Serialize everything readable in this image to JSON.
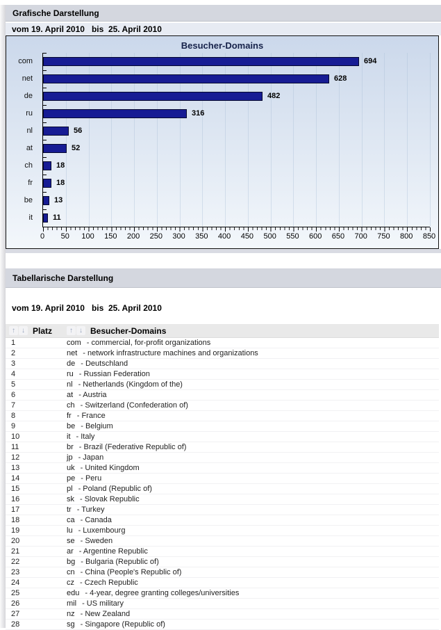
{
  "sections": {
    "graphic_title": "Grafische Darstellung",
    "table_title": "Tabellarische Darstellung"
  },
  "date_range": "vom 19. April 2010   bis  25. April 2010",
  "chart_data": {
    "type": "bar",
    "orientation": "horizontal",
    "title": "Besucher-Domains",
    "categories": [
      "com",
      "net",
      "de",
      "ru",
      "nl",
      "at",
      "ch",
      "fr",
      "be",
      "it"
    ],
    "values": [
      694,
      628,
      482,
      316,
      56,
      52,
      18,
      18,
      13,
      11
    ],
    "xlim": [
      0,
      850
    ],
    "x_tick_step": 50,
    "x_minor_step": 10,
    "x_tick_labels": [
      "0",
      "50",
      "100",
      "150",
      "200",
      "250",
      "300",
      "350",
      "400",
      "450",
      "500",
      "550",
      "600",
      "650",
      "700",
      "750",
      "800",
      "850"
    ],
    "grid": true,
    "legend": false,
    "value_labels": true,
    "colors": {
      "bar": "#171c94",
      "bar_border": "#05082e",
      "title": "#16224a",
      "axis": "#000000",
      "gridline": "#a9bcd6",
      "plot_bg_top": "#cbd8eb",
      "plot_bg_bottom": "#f3f7fb"
    }
  },
  "table": {
    "columns": [
      {
        "label": "Platz"
      },
      {
        "label": "Besucher-Domains"
      }
    ],
    "sort_icons": {
      "asc": "↑",
      "desc": "↓"
    },
    "separator": "-",
    "rows": [
      {
        "rank": "1",
        "code": "com",
        "desc": "commercial, for-profit organizations"
      },
      {
        "rank": "2",
        "code": "net",
        "desc": "network infrastructure machines and organizations"
      },
      {
        "rank": "3",
        "code": "de",
        "desc": "Deutschland"
      },
      {
        "rank": "4",
        "code": "ru",
        "desc": "Russian Federation"
      },
      {
        "rank": "5",
        "code": "nl",
        "desc": "Netherlands (Kingdom of the)"
      },
      {
        "rank": "6",
        "code": "at",
        "desc": "Austria"
      },
      {
        "rank": "7",
        "code": "ch",
        "desc": "Switzerland (Confederation of)"
      },
      {
        "rank": "8",
        "code": "fr",
        "desc": "France"
      },
      {
        "rank": "9",
        "code": "be",
        "desc": "Belgium"
      },
      {
        "rank": "10",
        "code": "it",
        "desc": "Italy"
      },
      {
        "rank": "11",
        "code": "br",
        "desc": "Brazil (Federative Republic of)"
      },
      {
        "rank": "12",
        "code": "jp",
        "desc": "Japan"
      },
      {
        "rank": "13",
        "code": "uk",
        "desc": "United Kingdom"
      },
      {
        "rank": "14",
        "code": "pe",
        "desc": "Peru"
      },
      {
        "rank": "15",
        "code": "pl",
        "desc": "Poland (Republic of)"
      },
      {
        "rank": "16",
        "code": "sk",
        "desc": "Slovak Republic"
      },
      {
        "rank": "17",
        "code": "tr",
        "desc": "Turkey"
      },
      {
        "rank": "18",
        "code": "ca",
        "desc": "Canada"
      },
      {
        "rank": "19",
        "code": "lu",
        "desc": "Luxembourg"
      },
      {
        "rank": "20",
        "code": "se",
        "desc": "Sweden"
      },
      {
        "rank": "21",
        "code": "ar",
        "desc": "Argentine Republic"
      },
      {
        "rank": "22",
        "code": "bg",
        "desc": "Bulgaria (Republic of)"
      },
      {
        "rank": "23",
        "code": "cn",
        "desc": "China (People's Republic of)"
      },
      {
        "rank": "24",
        "code": "cz",
        "desc": "Czech Republic"
      },
      {
        "rank": "25",
        "code": "edu",
        "desc": "4-year, degree granting colleges/universities"
      },
      {
        "rank": "26",
        "code": "mil",
        "desc": "US military"
      },
      {
        "rank": "27",
        "code": "nz",
        "desc": "New Zealand"
      },
      {
        "rank": "28",
        "code": "sg",
        "desc": "Singapore (Republic of)"
      }
    ]
  }
}
